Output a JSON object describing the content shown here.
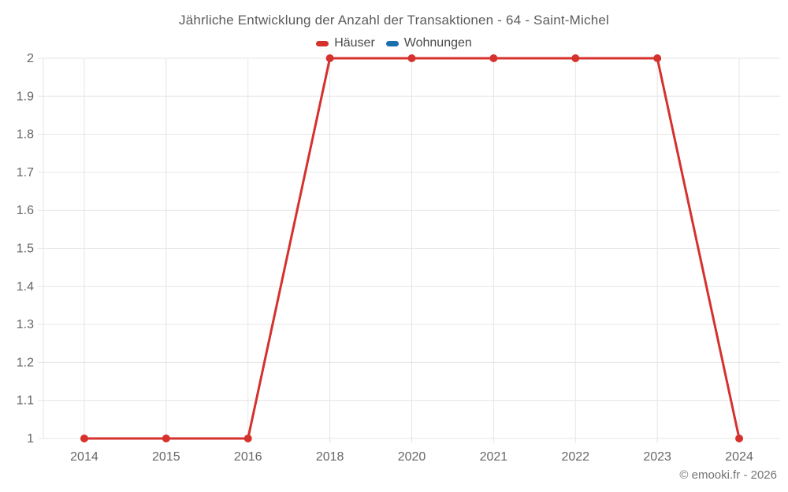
{
  "title": "Jährliche Entwicklung der Anzahl der Transaktionen - 64 - Saint-Michel",
  "credits": "© emooki.fr - 2026",
  "colors": {
    "haeuser": "#d5312d",
    "wohnungen": "#1a6fad",
    "grid": "#e6e6e6",
    "axis_text": "#666666"
  },
  "chart_data": {
    "type": "line",
    "title": "Jährliche Entwicklung der Anzahl der Transaktionen - 64 - Saint-Michel",
    "categories": [
      "2014",
      "2015",
      "2016",
      "2018",
      "2020",
      "2021",
      "2022",
      "2023",
      "2024"
    ],
    "series": [
      {
        "name": "Häuser",
        "color": "#d5312d",
        "values": [
          1,
          1,
          1,
          2,
          2,
          2,
          2,
          2,
          1
        ]
      },
      {
        "name": "Wohnungen",
        "color": "#1a6fad",
        "values": []
      }
    ],
    "xlabel": "",
    "ylabel": "",
    "ylim": [
      1,
      2
    ],
    "ytick_labels": [
      "1",
      "1.1",
      "1.2",
      "1.3",
      "1.4",
      "1.5",
      "1.6",
      "1.7",
      "1.8",
      "1.9",
      "2"
    ],
    "grid": true,
    "legend_position": "top",
    "marker_radius": 5,
    "line_width": 3
  }
}
